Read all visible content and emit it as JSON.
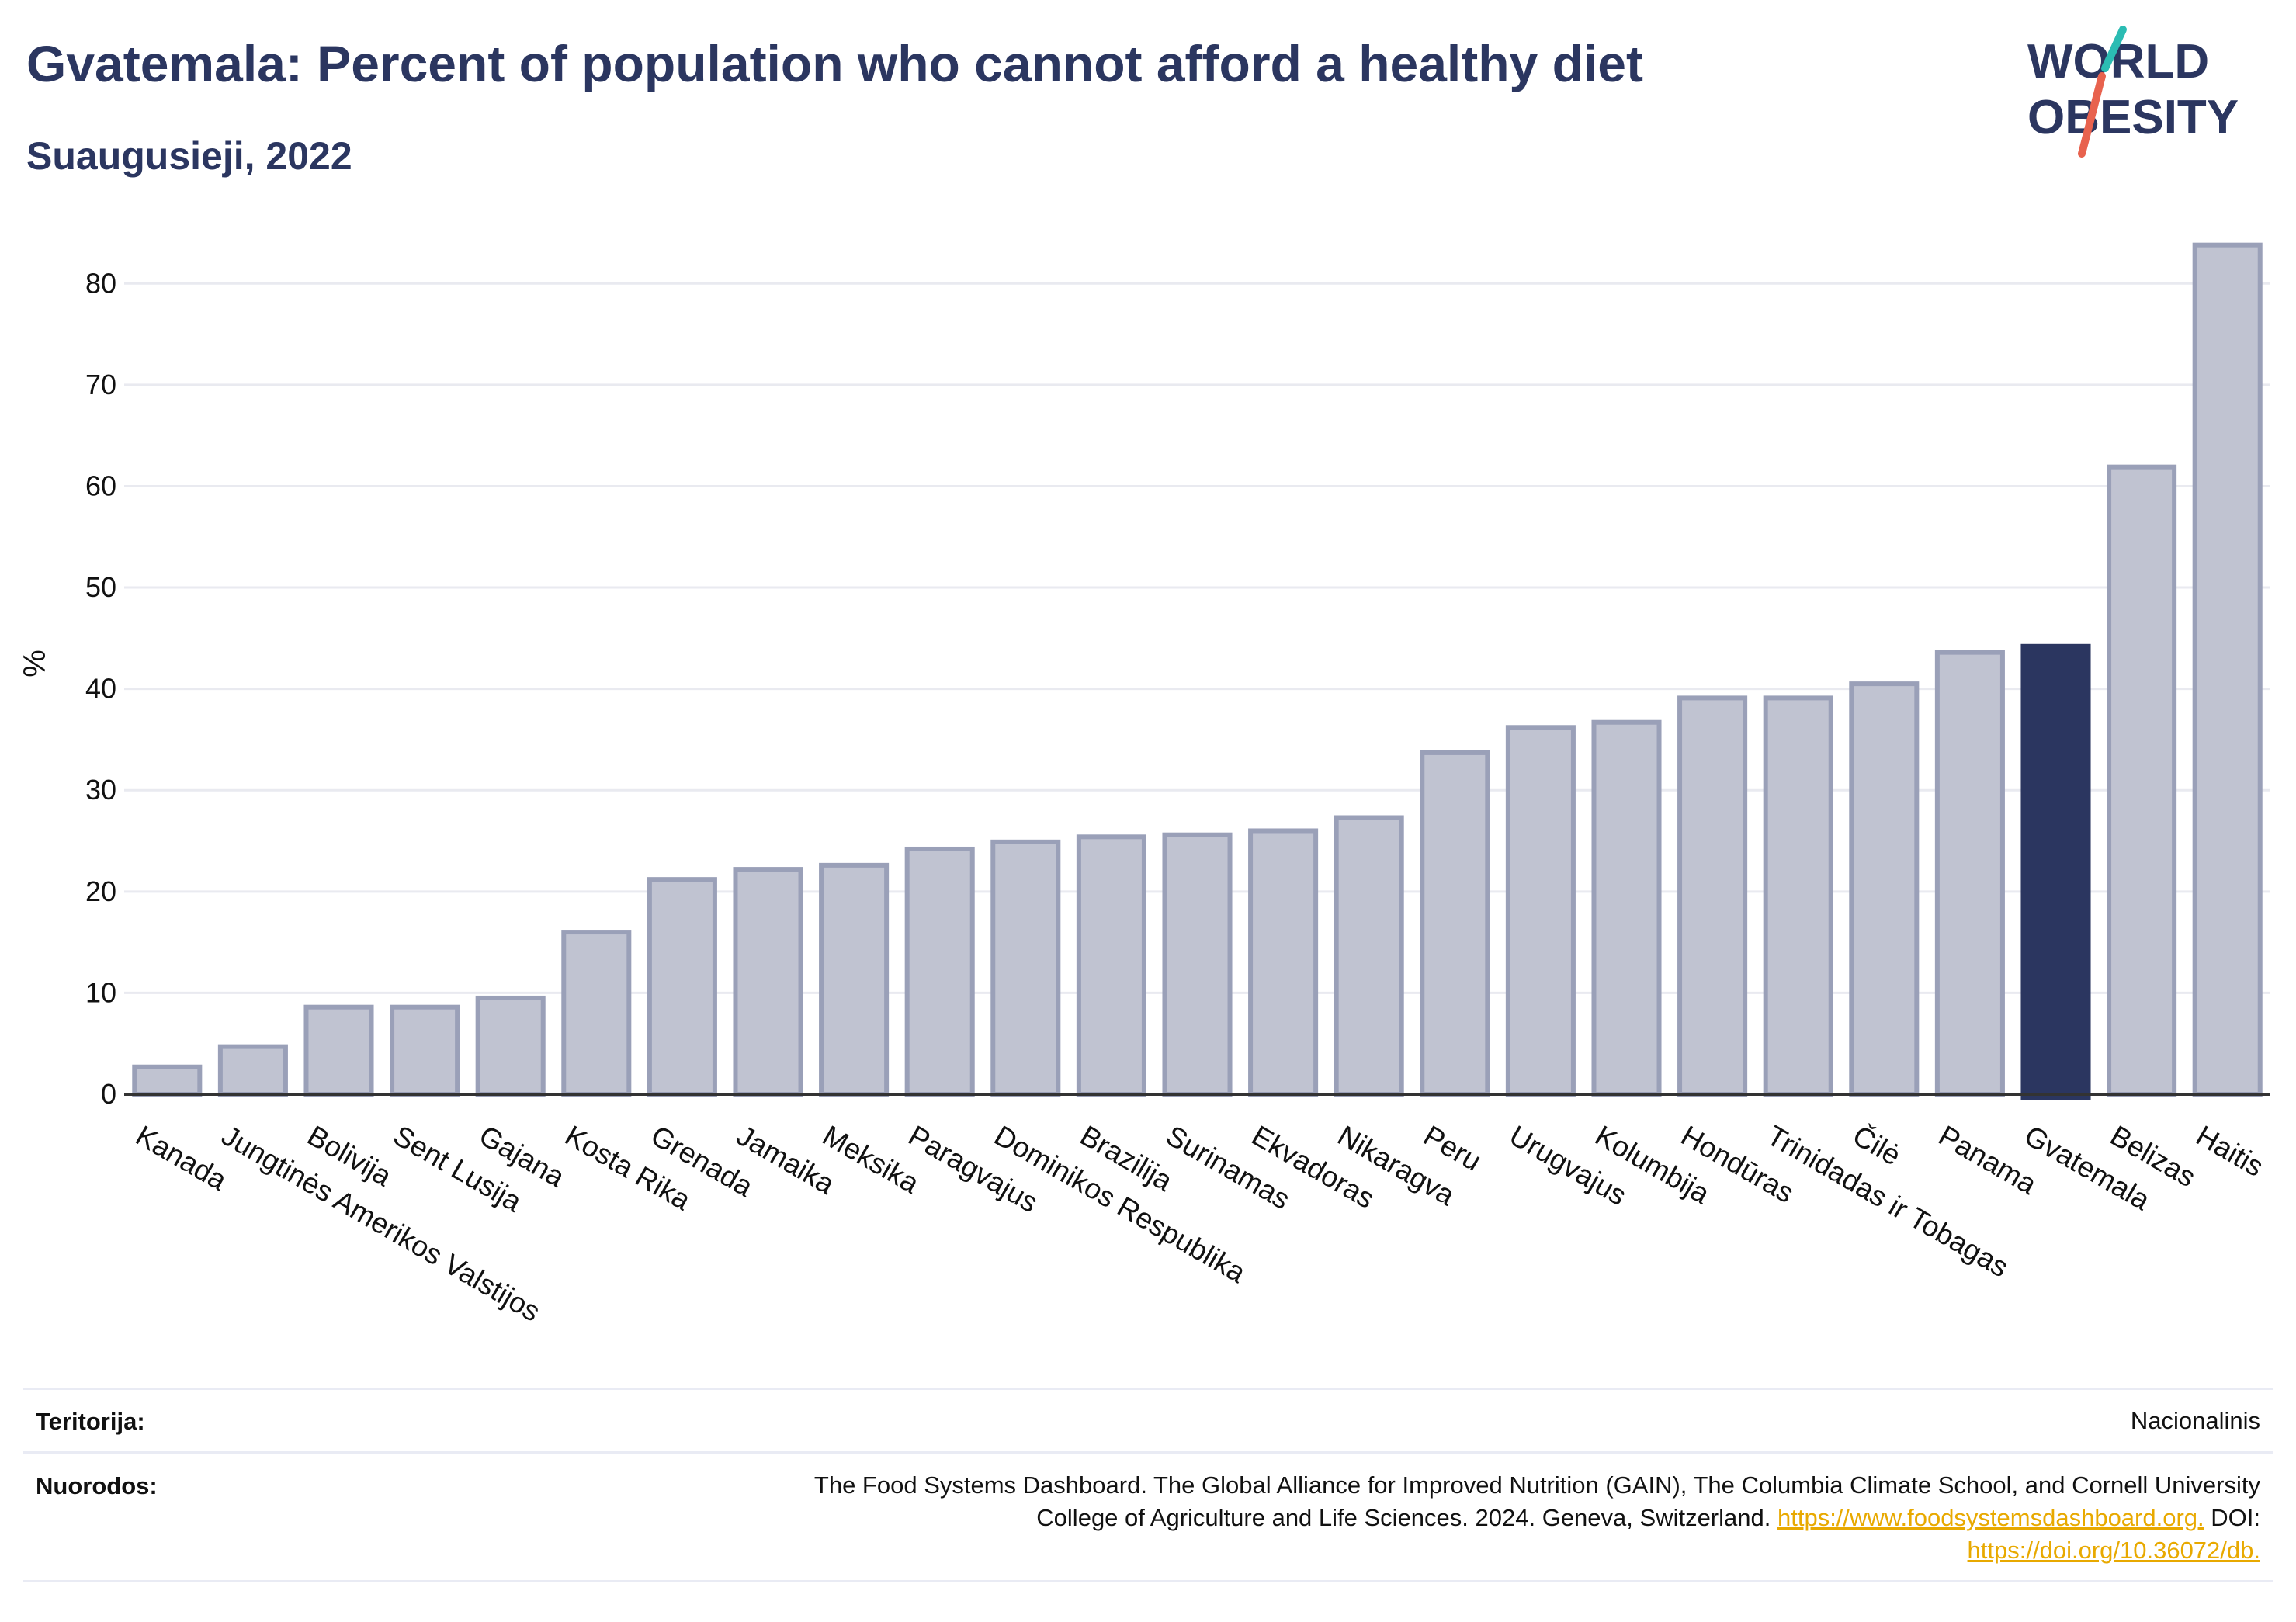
{
  "title": "Gvatemala: Percent of population who cannot afford a healthy diet",
  "subtitle": "Suaugusieji, 2022",
  "logo": {
    "line1": "WORLD",
    "line2": "OBESITY"
  },
  "colors": {
    "bar": "#c0c3d1",
    "bar_stroke": "#9aa0b8",
    "highlight": "#2b3660",
    "grid": "#e9eaf0",
    "axis": "#333333",
    "link": "#e8a900"
  },
  "chart_data": {
    "type": "bar",
    "ylabel": "%",
    "ylim": [
      0,
      85
    ],
    "yticks": [
      0,
      10,
      20,
      30,
      40,
      50,
      60,
      70,
      80
    ],
    "highlight": "Gvatemala",
    "categories": [
      "Kanada",
      "Jungtinės Amerikos Valstijos",
      "Bolivija",
      "Sent Lusija",
      "Gajana",
      "Kosta Rika",
      "Grenada",
      "Jamaika",
      "Meksika",
      "Paragvajus",
      "Dominikos Respublika",
      "Brazilija",
      "Surinamas",
      "Ekvadoras",
      "Nikaragva",
      "Peru",
      "Urugvajus",
      "Kolumbija",
      "Hondūras",
      "Trinidadas ir Tobagas",
      "Čilė",
      "Panama",
      "Gvatemala",
      "Belizas",
      "Haitis"
    ],
    "values": [
      2.7,
      4.7,
      8.6,
      8.6,
      9.5,
      16.0,
      21.2,
      22.2,
      22.6,
      24.2,
      24.9,
      25.4,
      25.6,
      26.0,
      27.3,
      33.7,
      36.2,
      36.7,
      39.1,
      39.1,
      40.5,
      43.6,
      44.2,
      61.9,
      83.8
    ]
  },
  "footer": {
    "territory_label": "Teritorija:",
    "territory_value": "Nacionalinis",
    "sources_label": "Nuorodos:",
    "sources_line1": "The Food Systems Dashboard. The Global Alliance for Improved Nutrition (GAIN), The Columbia Climate School, and Cornell University",
    "sources_line2_text": "College of Agriculture and Life Sciences. 2024. Geneva, Switzerland. ",
    "sources_link1": "https://www.foodsystemsdashboard.org.",
    "sources_doi_label": " DOI:",
    "sources_link2": "https://doi.org/10.36072/db."
  }
}
